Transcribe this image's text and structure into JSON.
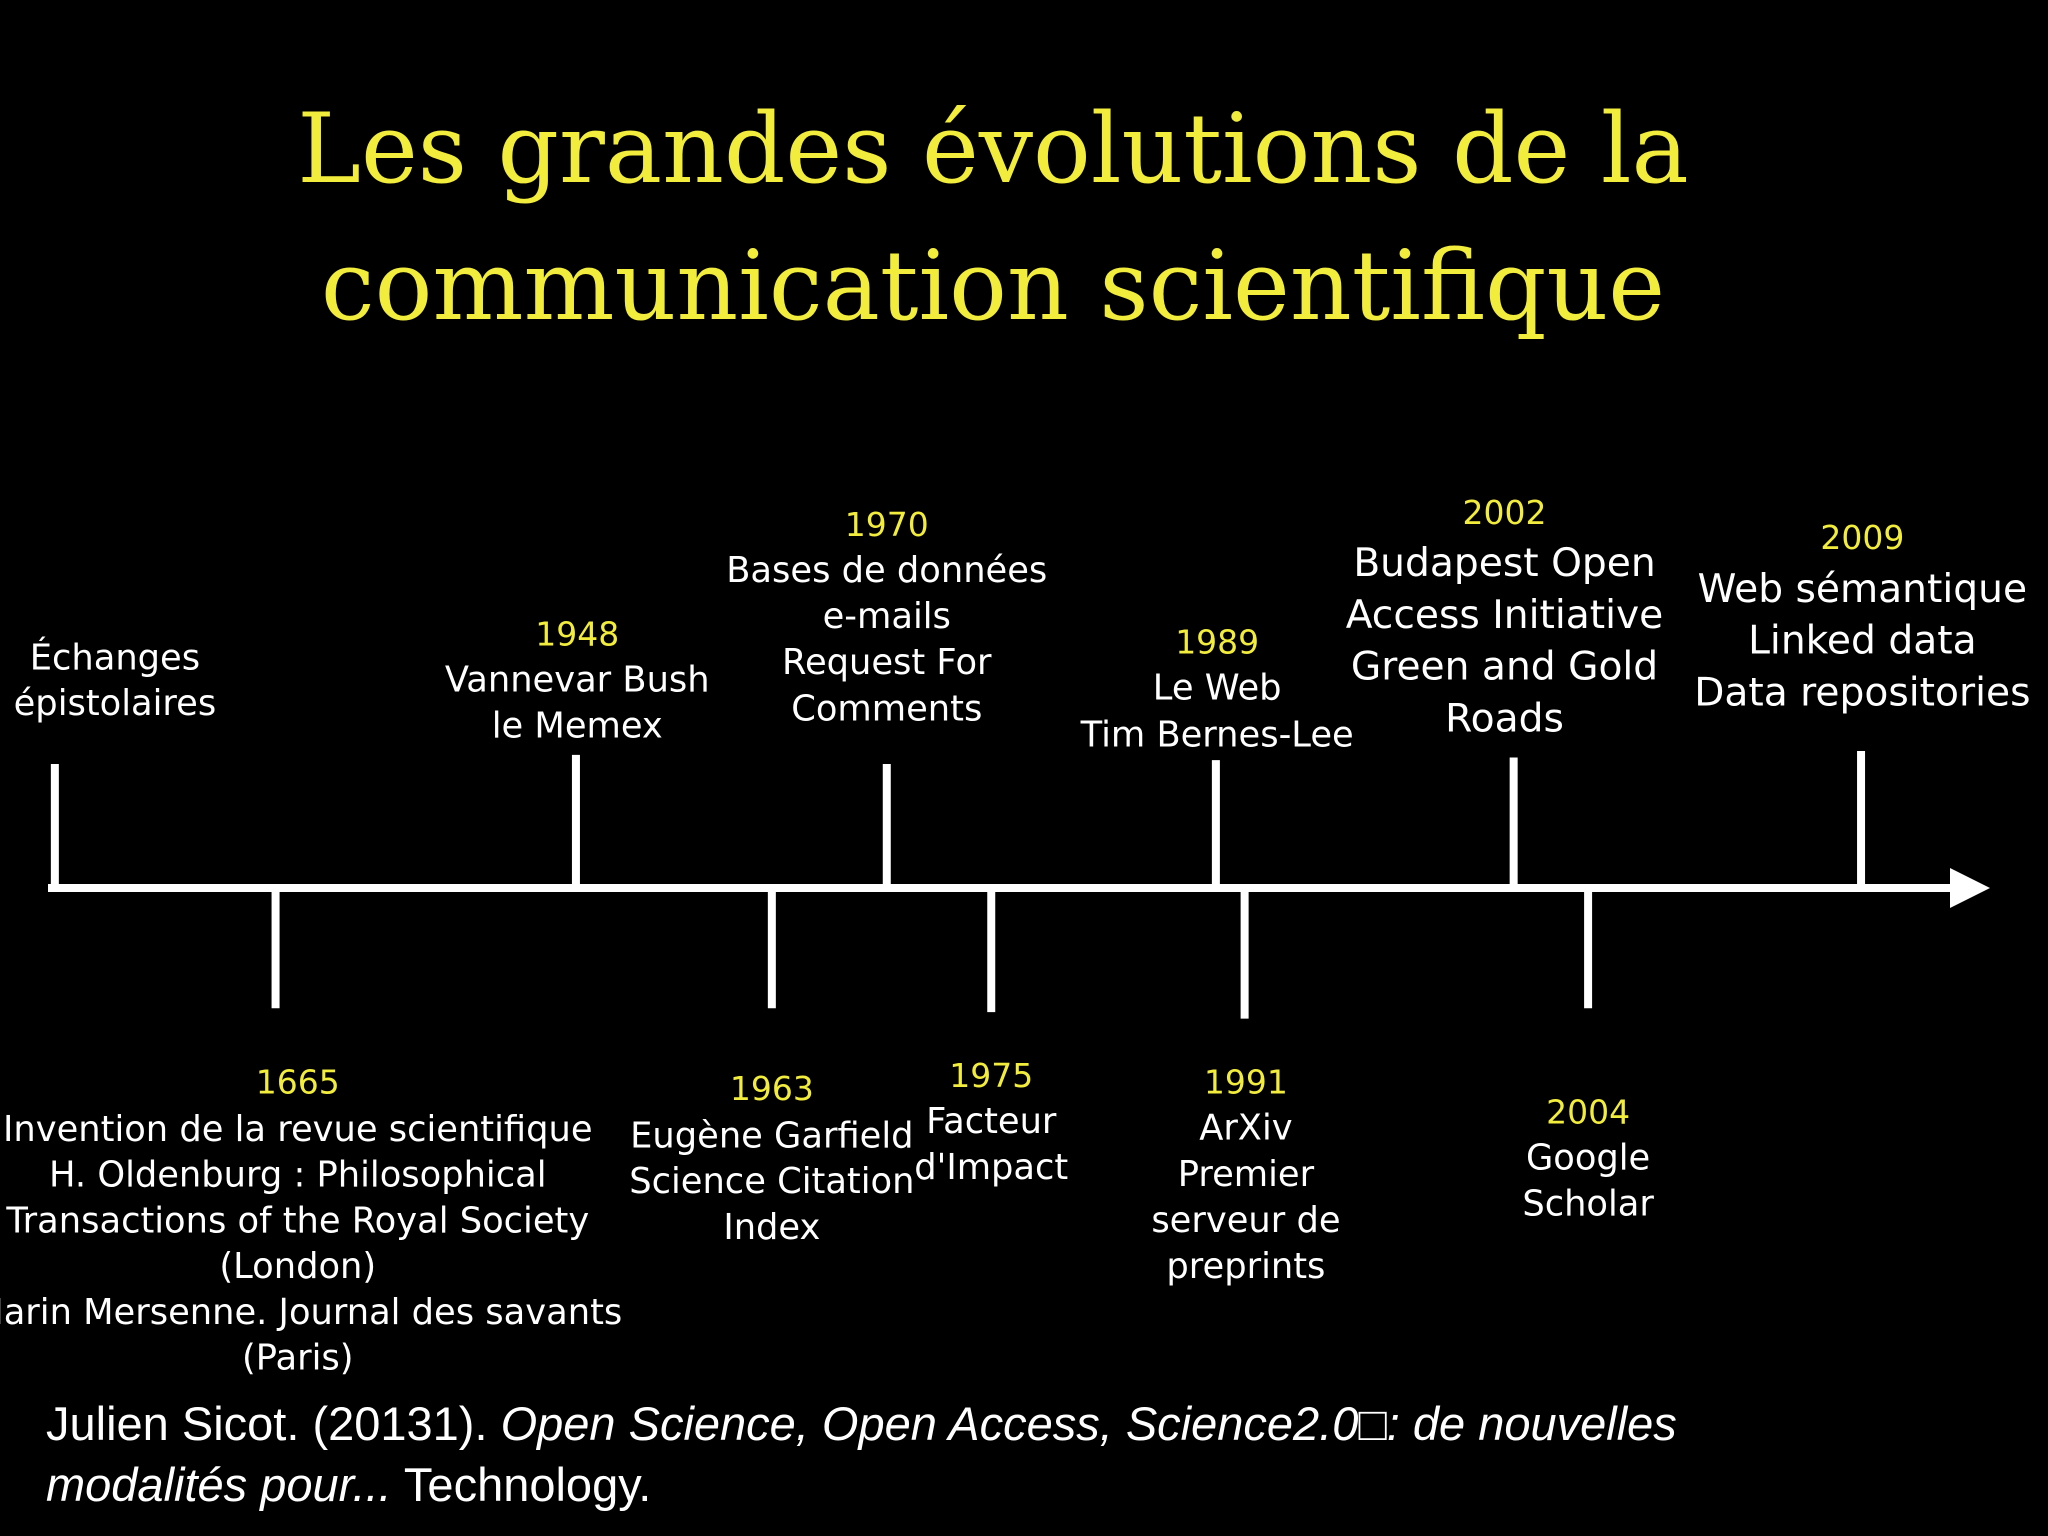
{
  "title": [
    "Les grandes évolutions de la",
    "communication scientifique"
  ],
  "events": [
    {
      "lines": [
        "Échanges",
        "épistolaires"
      ]
    },
    {
      "year": "1948",
      "lines": [
        "Vannevar Bush",
        "le Memex"
      ]
    },
    {
      "year": "1970",
      "lines": [
        "Bases de données",
        "e-mails",
        "Request For",
        "Comments"
      ]
    },
    {
      "year": "1989",
      "lines": [
        "Le Web",
        "Tim Bernes-Lee"
      ]
    },
    {
      "year": "2002",
      "lines": [
        "Budapest Open",
        "Access Initiative",
        "Green and Gold",
        "Roads"
      ]
    },
    {
      "year": "2009",
      "lines": [
        "Web sémantique",
        "Linked data",
        "Data repositories"
      ]
    },
    {
      "year": "1665",
      "lines": [
        "Invention de la revue scientifique",
        "H. Oldenburg : Philosophical",
        "Transactions of the Royal Society",
        "(London)",
        "Marin Mersenne. Journal des savants",
        "(Paris)"
      ]
    },
    {
      "year": "1963",
      "lines": [
        "Eugène Garfield",
        "Science Citation",
        "Index"
      ]
    },
    {
      "year": "1975",
      "lines": [
        "Facteur",
        "d'Impact"
      ]
    },
    {
      "year": "1991",
      "lines": [
        "ArXiv",
        "Premier",
        "serveur de",
        "preprints"
      ]
    },
    {
      "year": "2004",
      "lines": [
        "Google",
        "Scholar"
      ]
    }
  ],
  "citation": {
    "author": "Julien Sicot. (20131). ",
    "title": "Open Science, Open Access, Science2.0□: de nouvelles",
    "title_cont": "modalités pour...",
    "rest": " Technology."
  }
}
